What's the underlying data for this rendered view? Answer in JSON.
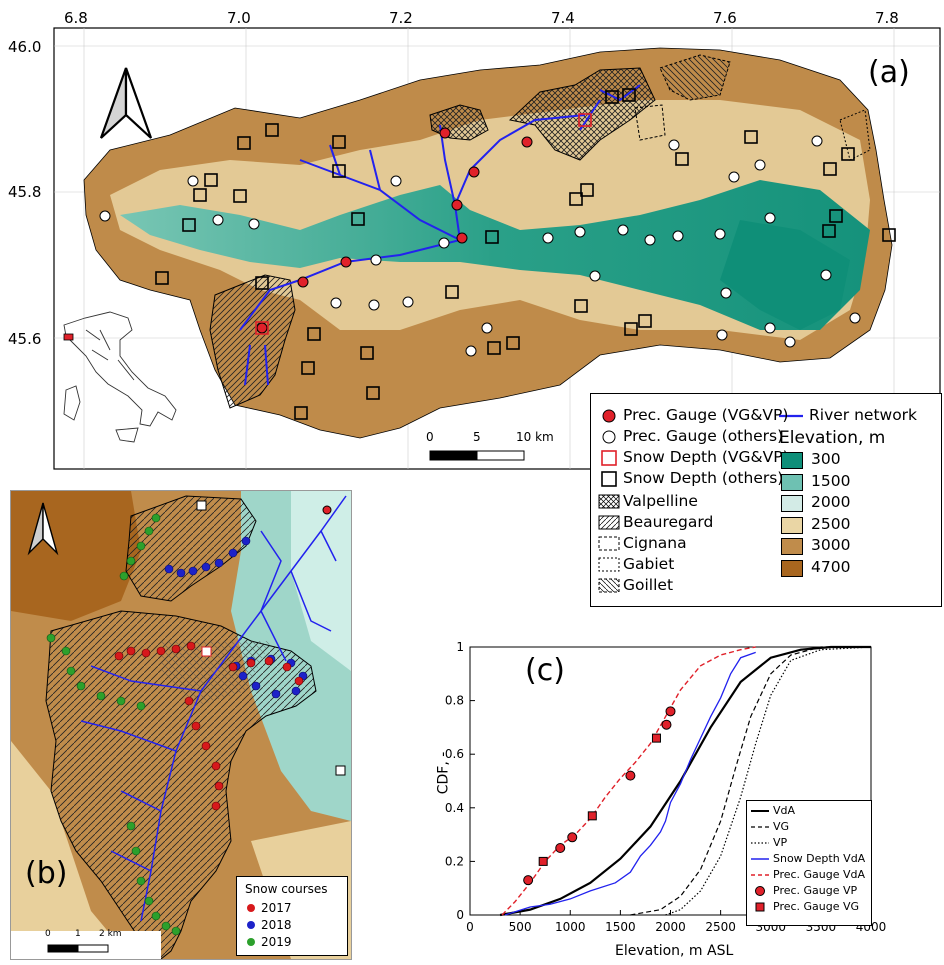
{
  "panel_a": {
    "letter": "(a)",
    "lon_ticks": [
      "6.8",
      "7.0",
      "7.2",
      "7.4",
      "7.6",
      "7.8"
    ],
    "lat_ticks": [
      "46.0",
      "45.8",
      "45.6"
    ],
    "scale_labels": [
      "0",
      "5",
      "10 km"
    ],
    "legend": {
      "col1": [
        {
          "label": "Prec. Gauge (VG&VP)",
          "symbol": "red-circle"
        },
        {
          "label": "Prec. Gauge (others)",
          "symbol": "white-circle"
        },
        {
          "label": "Snow Depth (VG&VP)",
          "symbol": "red-square"
        },
        {
          "label": "Snow Depth (others)",
          "symbol": "black-square"
        },
        {
          "label": "Valpelline",
          "symbol": "crosshatch"
        },
        {
          "label": "Beauregard",
          "symbol": "hatch-forward"
        },
        {
          "label": "Cignana",
          "symbol": "dash-box"
        },
        {
          "label": "Gabiet",
          "symbol": "dash-box-fine"
        },
        {
          "label": "Goillet",
          "symbol": "hatch-back"
        }
      ],
      "river_label": "River network",
      "elev_title": "Elevation, m",
      "elevation": [
        {
          "label": "300",
          "color": "#0e8f79"
        },
        {
          "label": "1500",
          "color": "#6ec1b2"
        },
        {
          "label": "2000",
          "color": "#d3ebe6"
        },
        {
          "label": "2500",
          "color": "#ead6a5"
        },
        {
          "label": "3000",
          "color": "#c08c4b"
        },
        {
          "label": "4700",
          "color": "#a8661f"
        }
      ]
    }
  },
  "panel_b": {
    "letter": "(b)",
    "legend_title": "Snow courses",
    "years": [
      {
        "label": "2017",
        "color": "#d7191c"
      },
      {
        "label": "2018",
        "color": "#1d22c9"
      },
      {
        "label": "2019",
        "color": "#2ca02c"
      }
    ],
    "scale_labels": [
      "0",
      "1",
      "2 km"
    ]
  },
  "panel_c": {
    "letter": "(c)",
    "xlabel": "Elevation, m ASL",
    "ylabel": "CDF, -",
    "legend": [
      "VdA",
      "VG",
      "VP",
      "Snow Depth VdA",
      "Prec. Gauge VdA",
      "Prec. Gauge VP",
      "Prec. Gauge VG"
    ]
  },
  "chart_data": {
    "type": "line",
    "xlabel": "Elevation, m ASL",
    "ylabel": "CDF, -",
    "xlim": [
      0,
      4000
    ],
    "ylim": [
      0,
      1
    ],
    "xticks": [
      0,
      500,
      1000,
      1500,
      2000,
      2500,
      3000,
      3500,
      4000
    ],
    "yticks": [
      0,
      0.2,
      0.4,
      0.6,
      0.8,
      1
    ],
    "grid": false,
    "legend_position": "bottom-right",
    "series": [
      {
        "name": "VdA",
        "style": "solid-black",
        "x": [
          300,
          600,
          900,
          1200,
          1500,
          1800,
          2100,
          2400,
          2700,
          3000,
          3300,
          3600,
          4000
        ],
        "y": [
          0,
          0.02,
          0.06,
          0.12,
          0.21,
          0.33,
          0.5,
          0.7,
          0.87,
          0.96,
          0.99,
          1,
          1
        ]
      },
      {
        "name": "VG",
        "style": "dashed-black",
        "x": [
          1600,
          1900,
          2100,
          2300,
          2500,
          2650,
          2800,
          3000,
          3200,
          3500,
          4000
        ],
        "y": [
          0,
          0.02,
          0.07,
          0.17,
          0.35,
          0.55,
          0.74,
          0.9,
          0.97,
          1,
          1
        ]
      },
      {
        "name": "VP",
        "style": "dotted-black",
        "x": [
          1950,
          2100,
          2300,
          2500,
          2700,
          2850,
          3000,
          3200,
          3500,
          4000
        ],
        "y": [
          0,
          0.02,
          0.09,
          0.22,
          0.44,
          0.64,
          0.82,
          0.95,
          0.99,
          1
        ]
      },
      {
        "name": "Snow Depth VdA",
        "style": "solid-blue",
        "x": [
          350,
          600,
          800,
          1000,
          1200,
          1450,
          1600,
          1700,
          1800,
          1900,
          1950,
          2000,
          2100,
          2200,
          2300,
          2400,
          2500,
          2600,
          2700,
          2850
        ],
        "y": [
          0,
          0.03,
          0.04,
          0.06,
          0.09,
          0.12,
          0.16,
          0.22,
          0.26,
          0.31,
          0.35,
          0.42,
          0.49,
          0.58,
          0.66,
          0.74,
          0.81,
          0.9,
          0.96,
          0.98
        ]
      },
      {
        "name": "Prec. Gauge VdA",
        "style": "dashed-red",
        "x": [
          320,
          450,
          600,
          750,
          900,
          1050,
          1200,
          1350,
          1500,
          1650,
          1800,
          1950,
          2100,
          2300,
          2500,
          2700,
          2850
        ],
        "y": [
          0,
          0.05,
          0.12,
          0.2,
          0.26,
          0.3,
          0.36,
          0.44,
          0.51,
          0.57,
          0.64,
          0.74,
          0.84,
          0.93,
          0.97,
          0.99,
          1
        ]
      },
      {
        "name": "Prec. Gauge VP",
        "style": "red-circle-markers",
        "x": [
          580,
          900,
          1020,
          1600,
          1960,
          2000
        ],
        "y": [
          0.13,
          0.25,
          0.29,
          0.52,
          0.71,
          0.76
        ]
      },
      {
        "name": "Prec. Gauge VG",
        "style": "red-square-markers",
        "x": [
          730,
          1220,
          1860
        ],
        "y": [
          0.2,
          0.37,
          0.66
        ]
      }
    ]
  }
}
